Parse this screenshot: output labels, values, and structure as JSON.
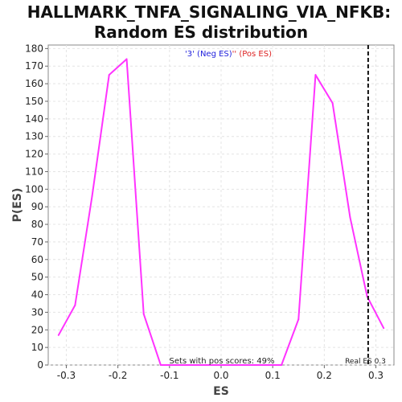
{
  "chart_data": {
    "type": "line",
    "title_line1": "HALLMARK_TNFA_SIGNALING_VIA_NFKB:",
    "title_line2": "Random ES distribution",
    "xlabel": "ES",
    "ylabel": "P(ES)",
    "xlim": [
      -0.335,
      0.335
    ],
    "ylim": [
      0,
      182
    ],
    "x_ticks": [
      -0.3,
      -0.2,
      -0.1,
      0.0,
      0.1,
      0.2,
      0.3
    ],
    "x_tick_labels": [
      "-0.3",
      "-0.2",
      "-0.1",
      "0.0",
      "0.1",
      "0.2",
      "0.3"
    ],
    "y_ticks": [
      0,
      10,
      20,
      30,
      40,
      50,
      60,
      70,
      80,
      90,
      100,
      110,
      120,
      130,
      140,
      150,
      160,
      170,
      180
    ],
    "y_tick_labels": [
      "0",
      "10",
      "20",
      "30",
      "40",
      "50",
      "60",
      "70",
      "80",
      "90",
      "100",
      "110",
      "120",
      "130",
      "140",
      "150",
      "160",
      "170",
      "180"
    ],
    "grid": true,
    "series": [
      {
        "color": "#ff33ff",
        "x": [
          -0.315,
          -0.283,
          -0.25,
          -0.217,
          -0.183,
          -0.15,
          -0.117,
          0.117,
          0.15,
          0.183,
          0.216,
          0.25,
          0.283,
          0.315
        ],
        "y": [
          17,
          34,
          96,
          165,
          174,
          29,
          0,
          0,
          26,
          165,
          149,
          84,
          39,
          21
        ]
      }
    ],
    "legend": {
      "placement": "top-center",
      "neg_text": "'3' (Neg ES)",
      "neg_color": "#2222dd",
      "pos_text": "'' (Pos ES)",
      "pos_color": "#dd2222"
    },
    "real_es": {
      "value": 0.285,
      "label": "Real ES 0.3"
    },
    "pos_scores_text": "Sets with pos scores: 49%"
  }
}
